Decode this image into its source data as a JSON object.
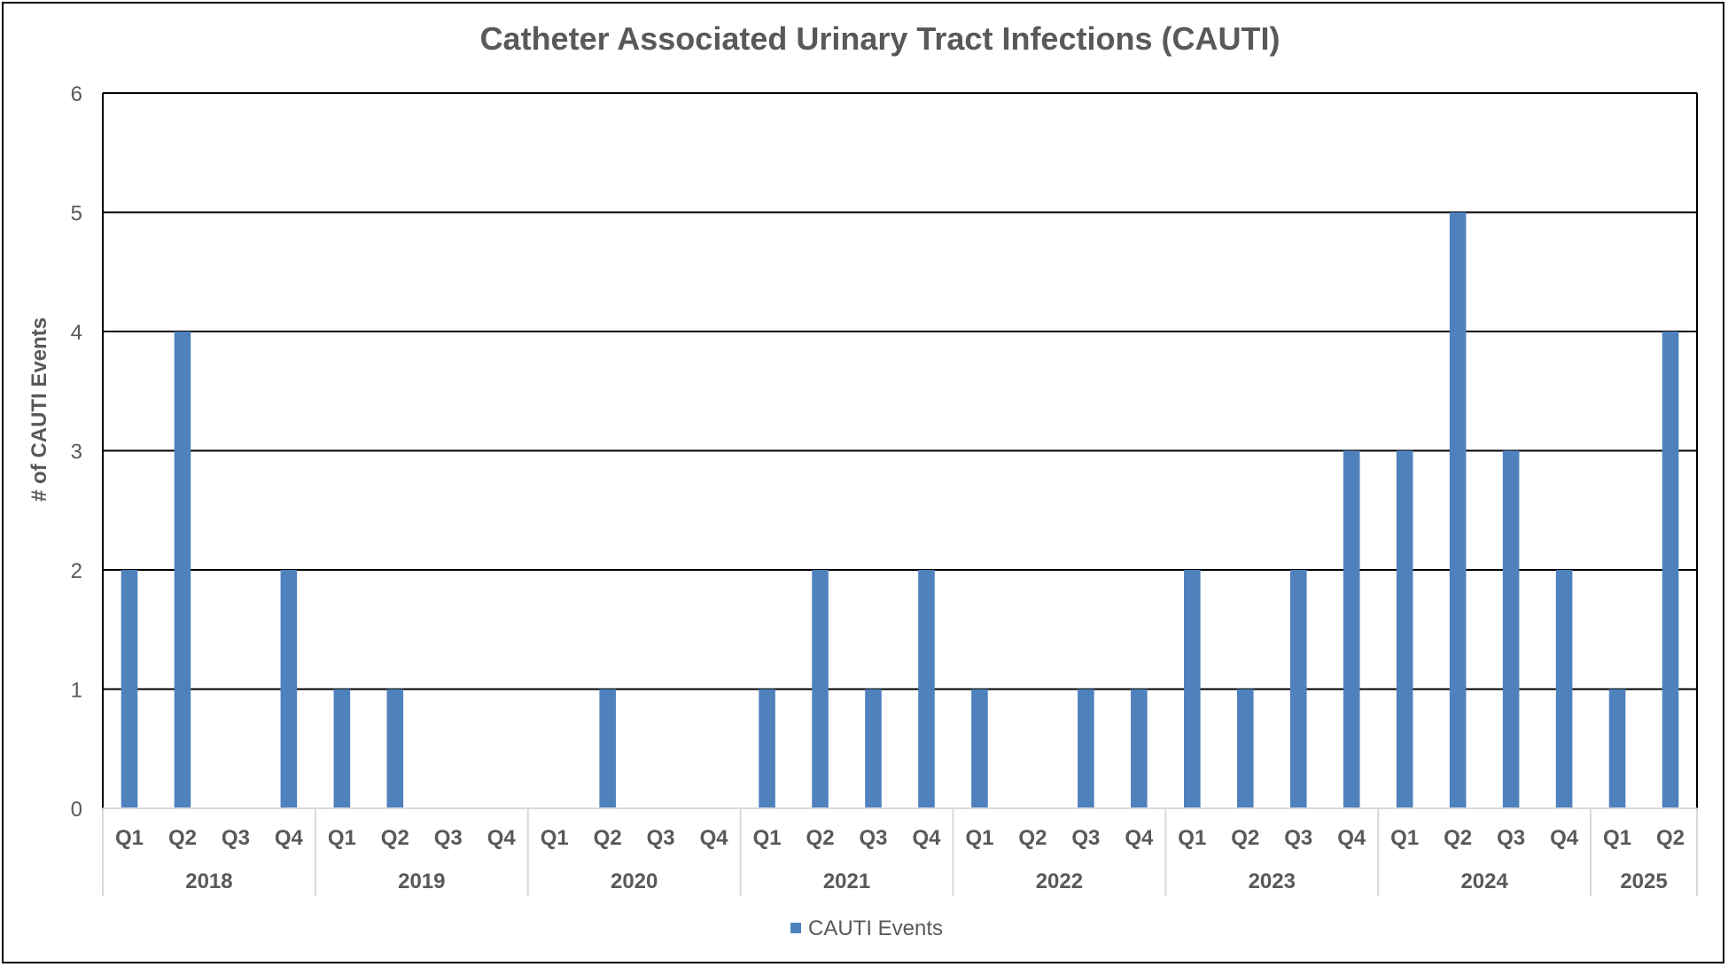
{
  "chart_data": {
    "type": "bar",
    "title": "Catheter Associated Urinary Tract Infections (CAUTI)",
    "ylabel": "# of CAUTI Events",
    "xlabel": "",
    "ylim": [
      0,
      6
    ],
    "yticks": [
      0,
      1,
      2,
      3,
      4,
      5,
      6
    ],
    "grid": true,
    "legend_position": "bottom",
    "colors": {
      "bar": "#4F81BD",
      "gridline": "#000000",
      "axis_text": "#595959",
      "title": "#595959",
      "category_divider": "#D9D9D9"
    },
    "categories": [
      {
        "quarter": "Q1",
        "year": "2018"
      },
      {
        "quarter": "Q2",
        "year": "2018"
      },
      {
        "quarter": "Q3",
        "year": "2018"
      },
      {
        "quarter": "Q4",
        "year": "2018"
      },
      {
        "quarter": "Q1",
        "year": "2019"
      },
      {
        "quarter": "Q2",
        "year": "2019"
      },
      {
        "quarter": "Q3",
        "year": "2019"
      },
      {
        "quarter": "Q4",
        "year": "2019"
      },
      {
        "quarter": "Q1",
        "year": "2020"
      },
      {
        "quarter": "Q2",
        "year": "2020"
      },
      {
        "quarter": "Q3",
        "year": "2020"
      },
      {
        "quarter": "Q4",
        "year": "2020"
      },
      {
        "quarter": "Q1",
        "year": "2021"
      },
      {
        "quarter": "Q2",
        "year": "2021"
      },
      {
        "quarter": "Q3",
        "year": "2021"
      },
      {
        "quarter": "Q4",
        "year": "2021"
      },
      {
        "quarter": "Q1",
        "year": "2022"
      },
      {
        "quarter": "Q2",
        "year": "2022"
      },
      {
        "quarter": "Q3",
        "year": "2022"
      },
      {
        "quarter": "Q4",
        "year": "2022"
      },
      {
        "quarter": "Q1",
        "year": "2023"
      },
      {
        "quarter": "Q2",
        "year": "2023"
      },
      {
        "quarter": "Q3",
        "year": "2023"
      },
      {
        "quarter": "Q4",
        "year": "2023"
      },
      {
        "quarter": "Q1",
        "year": "2024"
      },
      {
        "quarter": "Q2",
        "year": "2024"
      },
      {
        "quarter": "Q3",
        "year": "2024"
      },
      {
        "quarter": "Q4",
        "year": "2024"
      },
      {
        "quarter": "Q1",
        "year": "2025"
      },
      {
        "quarter": "Q2",
        "year": "2025"
      }
    ],
    "years": [
      "2018",
      "2019",
      "2020",
      "2021",
      "2022",
      "2023",
      "2024",
      "2025"
    ],
    "series": [
      {
        "name": "CAUTI Events",
        "values": [
          2,
          4,
          0,
          2,
          1,
          1,
          0,
          0,
          0,
          1,
          0,
          0,
          1,
          2,
          1,
          2,
          1,
          0,
          1,
          1,
          2,
          1,
          2,
          3,
          3,
          5,
          3,
          2,
          1,
          4
        ]
      }
    ]
  }
}
